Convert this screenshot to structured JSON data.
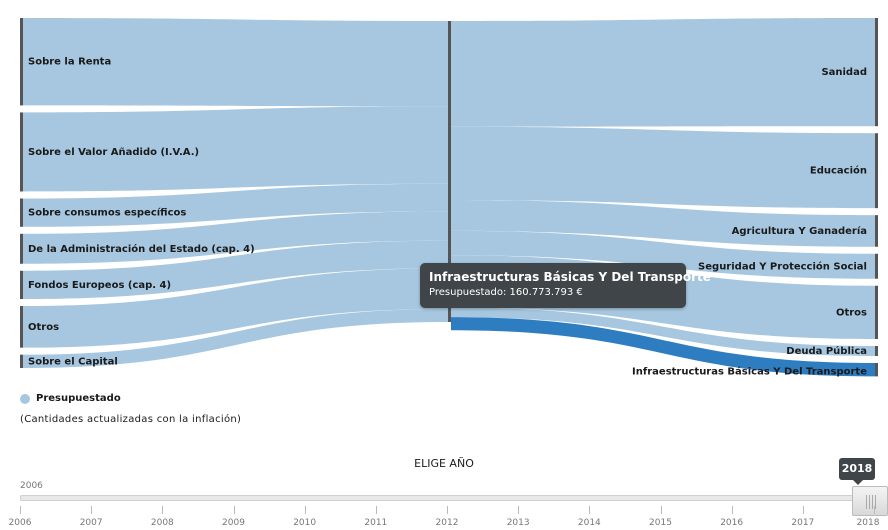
{
  "chart_data": {
    "type": "sankey",
    "sources": [
      {
        "name": "Sobre la Renta",
        "value": 1050000000
      },
      {
        "name": "Sobre el Valor Añadido (I.V.A.)",
        "value": 950000000
      },
      {
        "name": "Sobre consumos específicos",
        "value": 340000000
      },
      {
        "name": "De la Administración del Estado (cap. 4)",
        "value": 360000000
      },
      {
        "name": "Fondos Europeos (cap. 4)",
        "value": 340000000
      },
      {
        "name": "Otros",
        "value": 500000000
      },
      {
        "name": "Sobre el Capital",
        "value": 160000000
      }
    ],
    "targets": [
      {
        "name": "Sanidad",
        "value": 1300000000
      },
      {
        "name": "Educación",
        "value": 900000000
      },
      {
        "name": "Agricultura Y Ganadería",
        "value": 380000000
      },
      {
        "name": "Seguridad Y Protección Social",
        "value": 300000000
      },
      {
        "name": "Otros",
        "value": 640000000
      },
      {
        "name": "Deuda Pública",
        "value": 120000000
      },
      {
        "name": "Infraestructuras Básicas Y Del Transporte",
        "value": 160773793
      }
    ],
    "highlighted_target": "Infraestructuras Básicas Y Del Transporte",
    "series": [
      {
        "name": "Presupuestado"
      }
    ],
    "colors": {
      "flow": "#a7c7e0",
      "highlight": "#2f7dc1",
      "node": "#555555"
    }
  },
  "tooltip": {
    "title": "Infraestructuras Básicas Y Del Transporte",
    "value_text": "Presupuestado: 160.773.793 €"
  },
  "legend": {
    "label": "Presupuestado"
  },
  "note": "(Cantidades actualizadas con la inflación)",
  "year_selector": {
    "title": "ELIGE AÑO",
    "min_label": "2006",
    "selected": "2018",
    "years": [
      "2006",
      "2007",
      "2008",
      "2009",
      "2010",
      "2011",
      "2012",
      "2013",
      "2014",
      "2015",
      "2016",
      "2017",
      "2018"
    ]
  }
}
